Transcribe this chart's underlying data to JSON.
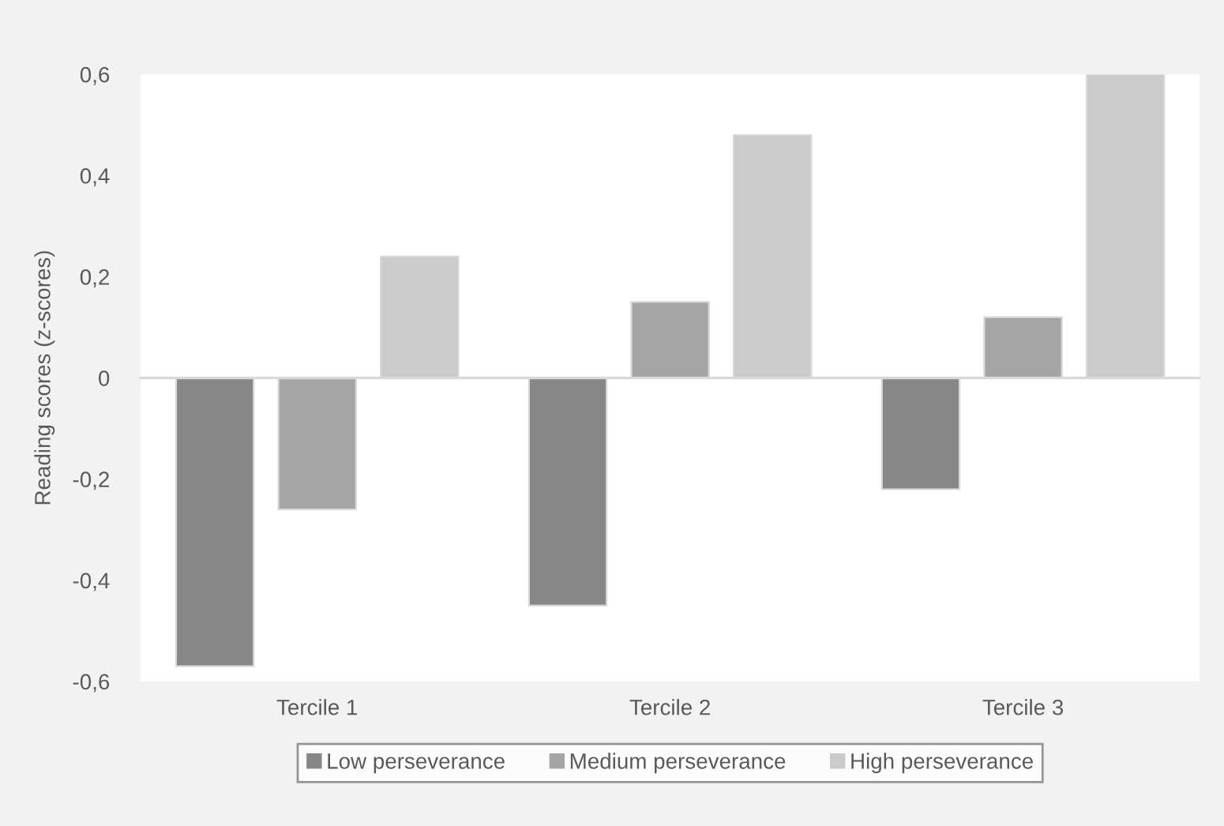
{
  "chart_data": {
    "type": "bar",
    "ylabel": "Reading scores (z-scores)",
    "categories": [
      "Tercile 1",
      "Tercile 2",
      "Tercile 3"
    ],
    "series": [
      {
        "name": "Low perseverance",
        "color": "#878787",
        "values": [
          -0.57,
          -0.45,
          -0.22
        ]
      },
      {
        "name": "Medium perseverance",
        "color": "#a5a5a5",
        "values": [
          -0.26,
          0.15,
          0.12
        ]
      },
      {
        "name": "High perseverance",
        "color": "#cbcbcb",
        "values": [
          0.24,
          0.48,
          0.6
        ]
      }
    ],
    "ylim": [
      -0.6,
      0.6
    ],
    "yticks": [
      {
        "value": -0.6,
        "label": "-0,6"
      },
      {
        "value": -0.4,
        "label": "-0,4"
      },
      {
        "value": -0.2,
        "label": "-0,2"
      },
      0,
      {
        "value": 0.2,
        "label": "0,2"
      },
      {
        "value": 0.4,
        "label": "0,4"
      },
      {
        "value": 0.6,
        "label": "0,6"
      }
    ],
    "legend": "bottom"
  }
}
